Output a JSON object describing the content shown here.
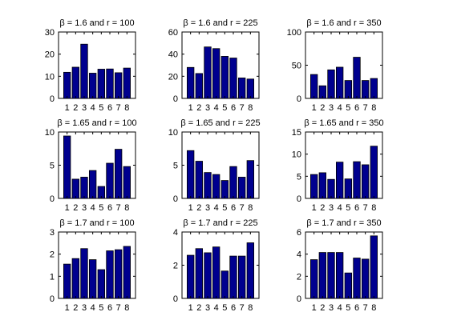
{
  "figure": {
    "background": "#ffffff",
    "bar_color": "#00008f"
  },
  "chart_data": [
    {
      "type": "bar",
      "title": "β = 1.6 and r = 100",
      "categories": [
        "1",
        "2",
        "3",
        "4",
        "5",
        "6",
        "7",
        "8"
      ],
      "values": [
        11.8,
        14.1,
        24.5,
        11.4,
        13.2,
        13.3,
        11.6,
        13.7
      ],
      "ylim": [
        0,
        30
      ],
      "yticks": [
        0,
        10,
        20,
        30
      ]
    },
    {
      "type": "bar",
      "title": "β = 1.6 and r = 225",
      "categories": [
        "1",
        "2",
        "3",
        "4",
        "5",
        "6",
        "7",
        "8"
      ],
      "values": [
        28,
        22.5,
        46.5,
        45,
        38,
        36.5,
        18.5,
        17.5
      ],
      "ylim": [
        0,
        60
      ],
      "yticks": [
        0,
        20,
        40,
        60
      ]
    },
    {
      "type": "bar",
      "title": "β = 1.6 and r = 350",
      "categories": [
        "1",
        "2",
        "3",
        "4",
        "5",
        "6",
        "7",
        "8"
      ],
      "values": [
        36,
        19,
        43,
        47,
        27,
        62,
        27,
        30
      ],
      "ylim": [
        0,
        100
      ],
      "yticks": [
        0,
        50,
        100
      ]
    },
    {
      "type": "bar",
      "title": "β = 1.65 and r = 100",
      "categories": [
        "1",
        "2",
        "3",
        "4",
        "5",
        "6",
        "7",
        "8"
      ],
      "values": [
        9.4,
        2.9,
        3.2,
        4.2,
        1.8,
        5.3,
        7.4,
        4.8
      ],
      "ylim": [
        0,
        10
      ],
      "yticks": [
        0,
        5,
        10
      ]
    },
    {
      "type": "bar",
      "title": "β = 1.65 and r = 225",
      "categories": [
        "1",
        "2",
        "3",
        "4",
        "5",
        "6",
        "7",
        "8"
      ],
      "values": [
        7.2,
        5.6,
        3.9,
        3.6,
        2.7,
        4.8,
        3.2,
        5.7
      ],
      "ylim": [
        0,
        10
      ],
      "yticks": [
        0,
        5,
        10
      ]
    },
    {
      "type": "bar",
      "title": "β = 1.65 and r = 350",
      "categories": [
        "1",
        "2",
        "3",
        "4",
        "5",
        "6",
        "7",
        "8"
      ],
      "values": [
        5.4,
        5.8,
        4.3,
        8.2,
        4.4,
        8.3,
        7.6,
        11.8
      ],
      "ylim": [
        0,
        15
      ],
      "yticks": [
        0,
        5,
        10,
        15
      ]
    },
    {
      "type": "bar",
      "title": "β = 1.7 and r = 100",
      "categories": [
        "1",
        "2",
        "3",
        "4",
        "5",
        "6",
        "7",
        "8"
      ],
      "values": [
        1.55,
        1.8,
        2.25,
        1.75,
        1.3,
        2.15,
        2.2,
        2.35
      ],
      "ylim": [
        0,
        3
      ],
      "yticks": [
        0,
        1,
        2,
        3
      ]
    },
    {
      "type": "bar",
      "title": "β = 1.7 and r = 225",
      "categories": [
        "1",
        "2",
        "3",
        "4",
        "5",
        "6",
        "7",
        "8"
      ],
      "values": [
        2.6,
        3.0,
        2.75,
        3.1,
        1.65,
        2.55,
        2.55,
        3.35
      ],
      "ylim": [
        0,
        4
      ],
      "yticks": [
        0,
        2,
        4
      ]
    },
    {
      "type": "bar",
      "title": "β = 1.7 and r = 350",
      "categories": [
        "1",
        "2",
        "3",
        "4",
        "5",
        "6",
        "7",
        "8"
      ],
      "values": [
        3.5,
        4.15,
        4.15,
        4.15,
        2.3,
        3.65,
        3.55,
        5.65
      ],
      "ylim": [
        0,
        6
      ],
      "yticks": [
        0,
        2,
        4,
        6
      ]
    }
  ]
}
